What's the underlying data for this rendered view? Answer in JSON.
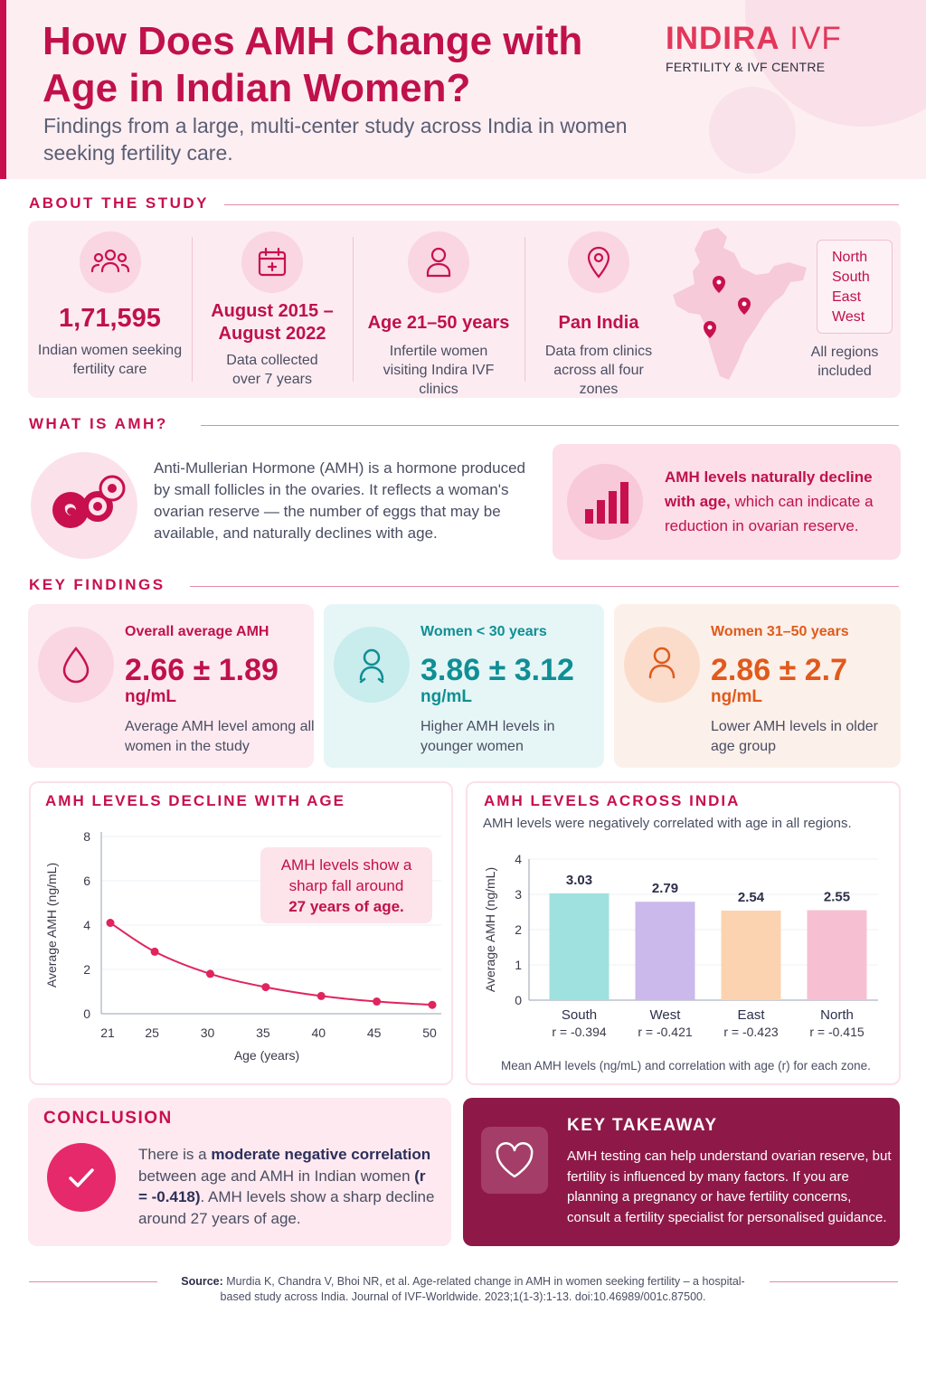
{
  "header": {
    "title": "How Does AMH Change with Age in Indian Women?",
    "subtitle": "Findings from a large, multi-center study across India in women seeking fertility care.",
    "logo_main": "INDIRA",
    "logo_light": "IVF",
    "logo_tagline": "FERTILITY & IVF CENTRE"
  },
  "about": {
    "heading": "ABOUT THE STUDY",
    "items": [
      {
        "icon": "people-icon",
        "value": "1,71,595",
        "desc": "Indian women seeking fertility care"
      },
      {
        "icon": "calendar-icon",
        "value": "August 2015 – August 2022",
        "desc": "Data collected over 7 years"
      },
      {
        "icon": "person-icon",
        "value": "Age 21–50 years",
        "desc": "Infertile women visiting Indira IVF clinics"
      },
      {
        "icon": "location-pin-icon",
        "value": "Pan India",
        "desc": "Data from clinics across all four zones"
      }
    ],
    "regions": [
      "North",
      "South",
      "East",
      "West"
    ],
    "regions_note": "All regions included"
  },
  "what_is_amh": {
    "heading": "WHAT IS AMH?",
    "text": "Anti-Mullerian Hormone (AMH) is a hormone produced by small follicles in the ovaries. It reflects a woman's ovarian reserve — the number of eggs that may be available, and naturally declines with age.",
    "callout_bold": "AMH levels naturally decline with age,",
    "callout_rest": " which can indicate a reduction in ovarian reserve."
  },
  "key_findings": {
    "heading": "KEY FINDINGS",
    "cards": [
      {
        "label": "Overall average AMH",
        "value": "2.66 ± 1.89",
        "unit": "ng/mL",
        "desc": "Average AMH level among all women in the study",
        "color": "#c0114c",
        "bg": "#fdeaf0",
        "circle": "#f9d6e1",
        "icon": "drop-icon"
      },
      {
        "label": "Women < 30 years",
        "value": "3.86 ± 3.12",
        "unit": "ng/mL",
        "desc": "Higher AMH levels in younger women",
        "color": "#0f8f95",
        "bg": "#e6f6f6",
        "circle": "#c9ecec",
        "icon": "young-woman-icon"
      },
      {
        "label": "Women 31–50 years",
        "value": "2.86 ± 2.7",
        "unit": "ng/mL",
        "desc": "Lower AMH levels in older age group",
        "color": "#e05a1c",
        "bg": "#fcf0ea",
        "circle": "#fbdccb",
        "icon": "older-woman-icon"
      }
    ]
  },
  "chart_data": [
    {
      "type": "line",
      "title": "AMH LEVELS DECLINE WITH AGE",
      "xlabel": "Age (years)",
      "ylabel": "Average AMH (ng/mL)",
      "x": [
        21,
        25,
        30,
        35,
        40,
        45,
        50
      ],
      "y": [
        4.1,
        2.8,
        1.8,
        1.2,
        0.8,
        0.55,
        0.4
      ],
      "xlim": [
        21,
        50
      ],
      "ylim": [
        0,
        8
      ],
      "xticks": [
        21,
        25,
        30,
        35,
        40,
        45,
        50
      ],
      "yticks": [
        0,
        2,
        4,
        6,
        8
      ],
      "color": "#e0245e",
      "annotation_pre": "AMH levels show a sharp fall around",
      "annotation_bold": "27 years of age."
    },
    {
      "type": "bar",
      "title": "AMH LEVELS ACROSS INDIA",
      "subtitle": "AMH levels were negatively correlated with age in all regions.",
      "ylabel": "Average AMH (ng/mL)",
      "categories": [
        "South",
        "West",
        "East",
        "North"
      ],
      "values": [
        3.03,
        2.79,
        2.54,
        2.55
      ],
      "value_labels": [
        "3.03",
        "2.79",
        "2.54",
        "2.55"
      ],
      "correlations": [
        "r = -0.394",
        "r = -0.421",
        "r = -0.423",
        "r = -0.415"
      ],
      "colors": [
        "#9fe1df",
        "#cbb9ec",
        "#fcd3b0",
        "#f7bfd2"
      ],
      "ylim": [
        0,
        4
      ],
      "yticks": [
        0,
        1,
        2,
        3,
        4
      ],
      "footnote": "Mean AMH levels (ng/mL) and correlation with age (r) for each zone."
    }
  ],
  "conclusion": {
    "title": "CONCLUSION",
    "text_1": "There is a ",
    "text_bold_1": "moderate negative correlation",
    "text_2": " between age and AMH in Indian women ",
    "text_bold_2": "(r = -0.418)",
    "text_3": ". AMH levels show a sharp decline around 27 years of age."
  },
  "takeaway": {
    "title": "KEY TAKEAWAY",
    "text": "AMH testing can help understand ovarian reserve, but fertility is influenced by many factors. If you are planning a pregnancy or have fertility concerns, consult a fertility specialist for personalised guidance."
  },
  "source": {
    "label": "Source:",
    "text": " Murdia K, Chandra V, Bhoi NR, et al. Age-related change in AMH in women seeking fertility – a hospital-based study across India. Journal of IVF-Worldwide. 2023;1(1-3):1-13. doi:10.46989/001c.87500."
  }
}
